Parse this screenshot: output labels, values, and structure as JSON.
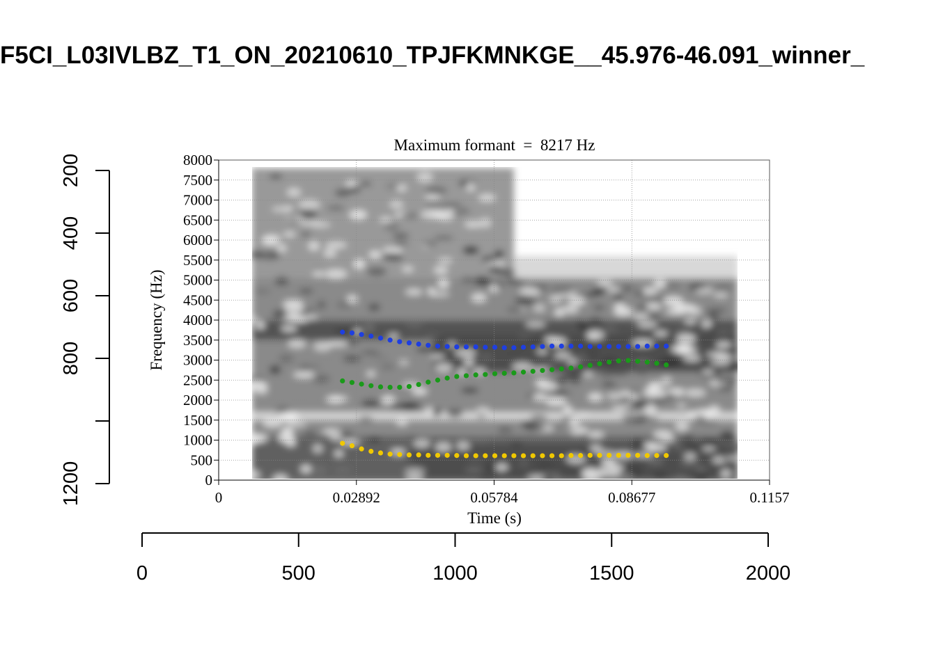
{
  "page_title": "F5CI_L03IVLBZ_T1_ON_20210610_TPJFKMNKGE__45.976-46.091_winner_",
  "chart_data": {
    "type": "scatter",
    "title": "Maximum formant  =  8217 Hz",
    "xlabel": "Time (s)",
    "ylabel": "Frequency (Hz)",
    "xlim": [
      0,
      0.1157
    ],
    "ylim": [
      0,
      8000
    ],
    "x_ticks": [
      "0",
      "0.02892",
      "0.05784",
      "0.08677",
      "0.1157"
    ],
    "y_ticks": [
      "0",
      "500",
      "1000",
      "1500",
      "2000",
      "2500",
      "3000",
      "3500",
      "4000",
      "4500",
      "5000",
      "5500",
      "6000",
      "6500",
      "7000",
      "7500",
      "8000"
    ],
    "grid": true,
    "background": "grayscale spectrogram, 0.007-0.109 s",
    "outer_x_axis": {
      "range": [
        0,
        2000
      ],
      "ticks": [
        "0",
        "500",
        "1000",
        "1500",
        "2000"
      ]
    },
    "outer_y_axis": {
      "range": [
        1200,
        200
      ],
      "ticks": [
        "200",
        "400",
        "600",
        "800",
        "1200"
      ],
      "reversed": true
    },
    "series": [
      {
        "color": "#1f3fe0",
        "points": [
          [
            0.026,
            3700
          ],
          [
            0.028,
            3680
          ],
          [
            0.03,
            3640
          ],
          [
            0.032,
            3600
          ],
          [
            0.034,
            3550
          ],
          [
            0.036,
            3500
          ],
          [
            0.038,
            3460
          ],
          [
            0.04,
            3430
          ],
          [
            0.042,
            3400
          ],
          [
            0.044,
            3370
          ],
          [
            0.046,
            3350
          ],
          [
            0.048,
            3340
          ],
          [
            0.05,
            3330
          ],
          [
            0.052,
            3330
          ],
          [
            0.054,
            3330
          ],
          [
            0.056,
            3320
          ],
          [
            0.058,
            3320
          ],
          [
            0.06,
            3310
          ],
          [
            0.062,
            3310
          ],
          [
            0.064,
            3320
          ],
          [
            0.066,
            3330
          ],
          [
            0.068,
            3340
          ],
          [
            0.07,
            3350
          ],
          [
            0.072,
            3350
          ],
          [
            0.074,
            3350
          ],
          [
            0.076,
            3350
          ],
          [
            0.078,
            3340
          ],
          [
            0.08,
            3340
          ],
          [
            0.082,
            3340
          ],
          [
            0.084,
            3340
          ],
          [
            0.086,
            3340
          ],
          [
            0.088,
            3340
          ],
          [
            0.09,
            3350
          ],
          [
            0.092,
            3350
          ],
          [
            0.094,
            3350
          ]
        ]
      },
      {
        "color": "#1a9a1a",
        "points": [
          [
            0.026,
            2480
          ],
          [
            0.028,
            2440
          ],
          [
            0.03,
            2400
          ],
          [
            0.032,
            2360
          ],
          [
            0.034,
            2330
          ],
          [
            0.036,
            2320
          ],
          [
            0.038,
            2320
          ],
          [
            0.04,
            2340
          ],
          [
            0.042,
            2390
          ],
          [
            0.044,
            2450
          ],
          [
            0.046,
            2500
          ],
          [
            0.048,
            2550
          ],
          [
            0.05,
            2590
          ],
          [
            0.052,
            2610
          ],
          [
            0.054,
            2630
          ],
          [
            0.056,
            2640
          ],
          [
            0.058,
            2660
          ],
          [
            0.06,
            2670
          ],
          [
            0.062,
            2680
          ],
          [
            0.064,
            2700
          ],
          [
            0.066,
            2720
          ],
          [
            0.068,
            2740
          ],
          [
            0.07,
            2760
          ],
          [
            0.072,
            2780
          ],
          [
            0.074,
            2800
          ],
          [
            0.076,
            2830
          ],
          [
            0.078,
            2870
          ],
          [
            0.08,
            2910
          ],
          [
            0.082,
            2950
          ],
          [
            0.084,
            2980
          ],
          [
            0.086,
            2990
          ],
          [
            0.088,
            2970
          ],
          [
            0.09,
            2950
          ],
          [
            0.092,
            2920
          ],
          [
            0.094,
            2880
          ]
        ]
      },
      {
        "color": "#f0c800",
        "points": [
          [
            0.026,
            920
          ],
          [
            0.028,
            860
          ],
          [
            0.03,
            780
          ],
          [
            0.032,
            720
          ],
          [
            0.034,
            680
          ],
          [
            0.036,
            650
          ],
          [
            0.038,
            640
          ],
          [
            0.04,
            630
          ],
          [
            0.042,
            630
          ],
          [
            0.044,
            620
          ],
          [
            0.046,
            620
          ],
          [
            0.048,
            620
          ],
          [
            0.05,
            615
          ],
          [
            0.052,
            610
          ],
          [
            0.054,
            610
          ],
          [
            0.056,
            610
          ],
          [
            0.058,
            610
          ],
          [
            0.06,
            610
          ],
          [
            0.062,
            610
          ],
          [
            0.064,
            610
          ],
          [
            0.066,
            610
          ],
          [
            0.068,
            610
          ],
          [
            0.07,
            610
          ],
          [
            0.072,
            610
          ],
          [
            0.074,
            615
          ],
          [
            0.076,
            615
          ],
          [
            0.078,
            620
          ],
          [
            0.08,
            620
          ],
          [
            0.082,
            620
          ],
          [
            0.084,
            620
          ],
          [
            0.086,
            620
          ],
          [
            0.088,
            620
          ],
          [
            0.09,
            615
          ],
          [
            0.092,
            615
          ],
          [
            0.094,
            615
          ]
        ]
      }
    ]
  }
}
